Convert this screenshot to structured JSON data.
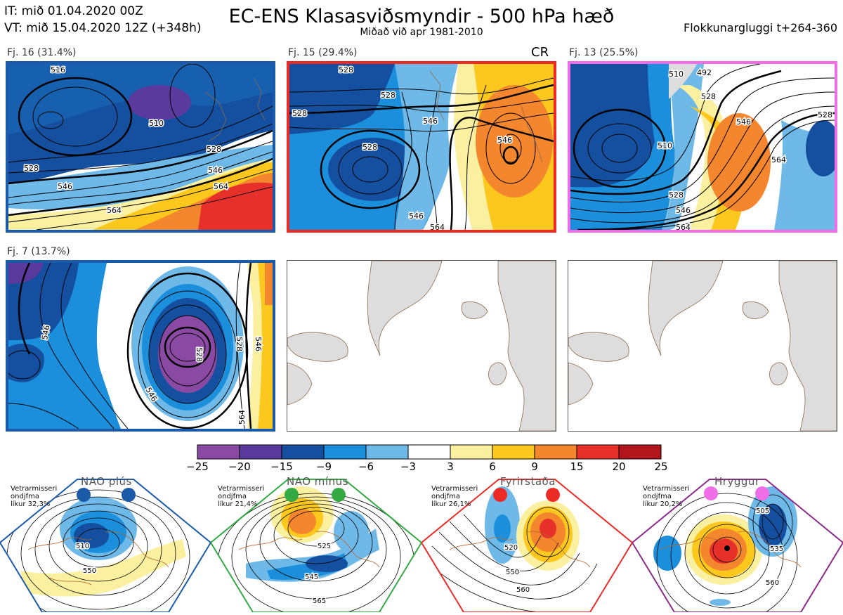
{
  "header": {
    "it": "IT: mið 01.04.2020 00Z",
    "vt": "VT: mið 15.04.2020 12Z  (+348h)",
    "title": "EC-ENS Klasasviðsmyndir - 500 hPa hæð",
    "subtitle": "Miðað við apr 1981-2010",
    "window": "Flokkunargluggi t+264-360"
  },
  "clusters": [
    {
      "label": "Fj. 16 (31.4%)",
      "border_color": "#1a5aa8",
      "contours": [
        "516",
        "528",
        "546",
        "564",
        "510"
      ]
    },
    {
      "label": "Fj. 15 (29.4%)",
      "border_color": "#ee2a25",
      "tag": "CR",
      "contours": [
        "528",
        "546",
        "546",
        "546",
        "528",
        "564"
      ]
    },
    {
      "label": "Fj. 13 (25.5%)",
      "border_color": "#ef6ee8",
      "contours": [
        "510",
        "528",
        "546",
        "564",
        "492",
        "528"
      ]
    },
    {
      "label": "Fj. 7 (13.7%)",
      "border_color": "#1a5aa8",
      "contours": [
        "546",
        "528",
        "546",
        "564",
        "546"
      ]
    }
  ],
  "colorbar": {
    "colors": [
      "#8a4aa3",
      "#5b3a9e",
      "#1550a0",
      "#1b8fdc",
      "#6fb9e9",
      "#ffffff",
      "#fbf0a0",
      "#fdc81e",
      "#f4862d",
      "#e8302a",
      "#b0161c"
    ],
    "ticks": [
      "−25",
      "−20",
      "−15",
      "−9",
      "−6",
      "−3",
      "3",
      "6",
      "9",
      "15",
      "20",
      "25"
    ]
  },
  "regimes": [
    {
      "name": "NAO plús",
      "stat1": "Vetrarmisseri",
      "stat2": "ondjfma",
      "stat3": "líkur 32,3%",
      "color": "#1a5aa8",
      "contours": [
        "510",
        "550"
      ]
    },
    {
      "name": "NAO mínus",
      "stat1": "Vetrarmisseri",
      "stat2": "ondjfma",
      "stat3": "líkur 21,4%",
      "color": "#33aa44",
      "contours": [
        "525",
        "545",
        "565"
      ]
    },
    {
      "name": "Fyrirstaða",
      "stat1": "Vetrarmisseri",
      "stat2": "ondjfma",
      "stat3": "líkur 26,1%",
      "color": "#ee2a25",
      "contours": [
        "520",
        "550",
        "560"
      ]
    },
    {
      "name": "Hryggur",
      "stat1": "Vetrarmisseri",
      "stat2": "ondjfma",
      "stat3": "líkur 20,2%",
      "color": "#ef6ee8",
      "frame_color": "#8b2a8b",
      "contours": [
        "505",
        "535",
        "560"
      ]
    }
  ]
}
